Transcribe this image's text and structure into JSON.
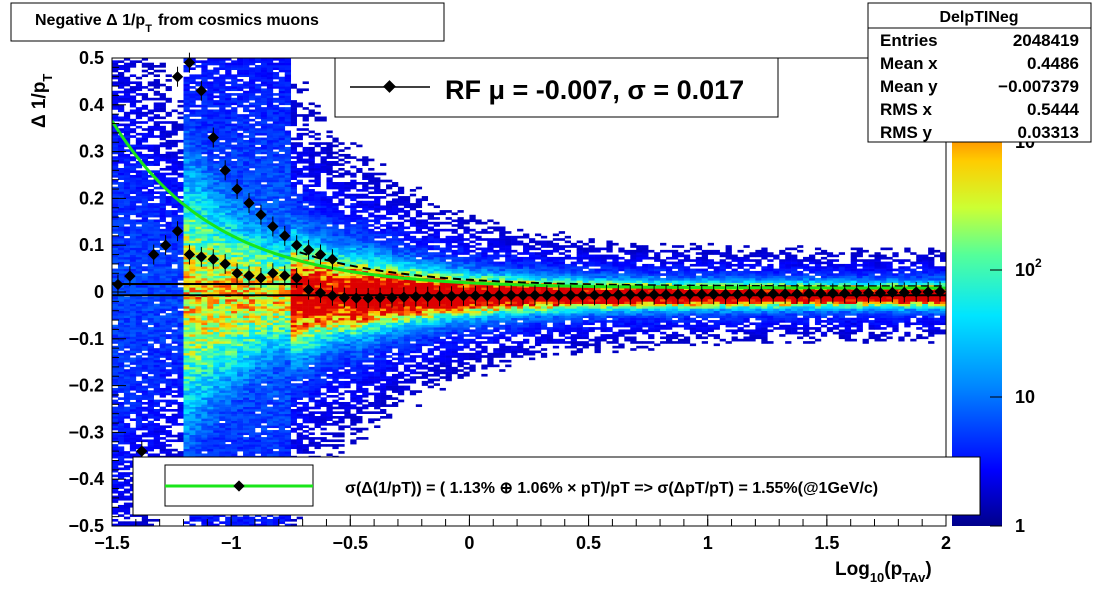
{
  "chart_data": {
    "type": "heatmap",
    "title": "Negative Δ 1/p",
    "title_sub": "T",
    "title_tail": "from cosmics muons",
    "xlabel": "Log",
    "xlabel_sub1": "10",
    "xlabel_mid": "(p",
    "xlabel_sub2": "TAv",
    "xlabel_tail": ")",
    "ylabel": "Δ 1/p",
    "ylabel_sub": "T",
    "xlim": [
      -1.5,
      2
    ],
    "ylim": [
      -0.5,
      0.5
    ],
    "x_ticks": [
      "−1.5",
      "−1",
      "−0.5",
      "0",
      "0.5",
      "1",
      "1.5",
      "2"
    ],
    "y_ticks": [
      "−0.5",
      "−0.4",
      "−0.3",
      "−0.2",
      "−0.1",
      "0",
      "0.1",
      "0.2",
      "0.3",
      "0.4",
      "0.5"
    ],
    "z_scale": "log",
    "z_ticks": [
      "1",
      "10",
      "10",
      "10"
    ],
    "z_tick_exps": [
      "",
      "",
      "2",
      "3"
    ],
    "stats_box": {
      "name": "DelpTINeg",
      "rows": [
        {
          "label": "Entries",
          "value": "2048419"
        },
        {
          "label": "Mean x",
          "value": "0.4486"
        },
        {
          "label": "Mean y",
          "value": "−0.007379"
        },
        {
          "label": "RMS x",
          "value": "0.5444"
        },
        {
          "label": "RMS y",
          "value": "0.03313"
        }
      ]
    },
    "legend_top": "RF μ = -0.007, σ =   0.017",
    "legend_bottom": "σ(Δ(1/pT)) = ( 1.13% ⊕  1.06% × pT)/pT => σ(ΔpT/pT) =  1.55%(@1GeV/c)",
    "resolution_fit": {
      "a_percent": 1.13,
      "b_percent": 1.06,
      "color": "#19e619"
    },
    "mean_line_y": -0.007,
    "profile_mean": {
      "x": [
        -1.475,
        -1.425,
        -1.375,
        -1.325,
        -1.275,
        -1.225,
        -1.175,
        -1.125,
        -1.075,
        -1.025,
        -0.975,
        -0.925,
        -0.875,
        -0.825,
        -0.775,
        -0.725,
        -0.675,
        -0.625,
        -0.575,
        -0.525,
        -0.475,
        -0.425,
        -0.375,
        -0.325,
        -0.275,
        -0.225,
        -0.175,
        -0.125,
        -0.075,
        -0.025,
        0.025,
        0.075,
        0.125,
        0.175,
        0.225,
        0.275,
        0.325,
        0.375,
        0.425,
        0.475,
        0.525,
        0.575,
        0.625,
        0.675,
        0.725,
        0.775,
        0.825,
        0.875,
        0.925,
        0.975,
        1.025,
        1.075,
        1.125,
        1.175,
        1.225,
        1.275,
        1.325,
        1.375,
        1.425,
        1.475,
        1.525,
        1.575,
        1.625,
        1.675,
        1.725,
        1.775,
        1.825,
        1.875,
        1.925,
        1.975
      ],
      "y": [
        0.016,
        0.034,
        -0.34,
        0.08,
        0.1,
        0.13,
        0.08,
        0.075,
        0.07,
        0.06,
        0.04,
        0.035,
        0.03,
        0.04,
        0.035,
        0.03,
        0.005,
        -0.002,
        -0.008,
        -0.012,
        -0.013,
        -0.013,
        -0.012,
        -0.012,
        -0.011,
        -0.01,
        -0.01,
        -0.009,
        -0.009,
        -0.008,
        -0.008,
        -0.008,
        -0.007,
        -0.007,
        -0.007,
        -0.007,
        -0.007,
        -0.007,
        -0.007,
        -0.007,
        -0.007,
        -0.006,
        -0.006,
        -0.006,
        -0.006,
        -0.006,
        -0.006,
        -0.005,
        -0.005,
        -0.005,
        -0.005,
        -0.005,
        -0.005,
        -0.004,
        -0.004,
        -0.004,
        -0.004,
        -0.004,
        -0.003,
        -0.003,
        -0.003,
        -0.003,
        -0.002,
        -0.002,
        -0.002,
        -0.001,
        -0.001,
        0.0,
        0.0,
        0.001
      ]
    },
    "profile_rms": {
      "x": [
        -1.225,
        -1.175,
        -1.125,
        -1.075,
        -1.025,
        -0.975,
        -0.925,
        -0.875,
        -0.825,
        -0.775,
        -0.725,
        -0.675,
        -0.625,
        -0.575
      ],
      "y": [
        0.46,
        0.49,
        0.43,
        0.33,
        0.26,
        0.22,
        0.19,
        0.165,
        0.14,
        0.12,
        0.1,
        0.09,
        0.08,
        0.07
      ]
    }
  }
}
